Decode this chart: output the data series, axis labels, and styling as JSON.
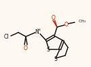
{
  "background_color": "#fdf8f0",
  "bond_color": "#1a1a1a",
  "heteroatom_colors": {
    "O": "#cc2200",
    "N": "#1a1a1a",
    "S": "#1a1a1a",
    "Cl": "#1a1a1a"
  },
  "figsize": [
    1.34,
    0.99
  ],
  "dpi": 100
}
